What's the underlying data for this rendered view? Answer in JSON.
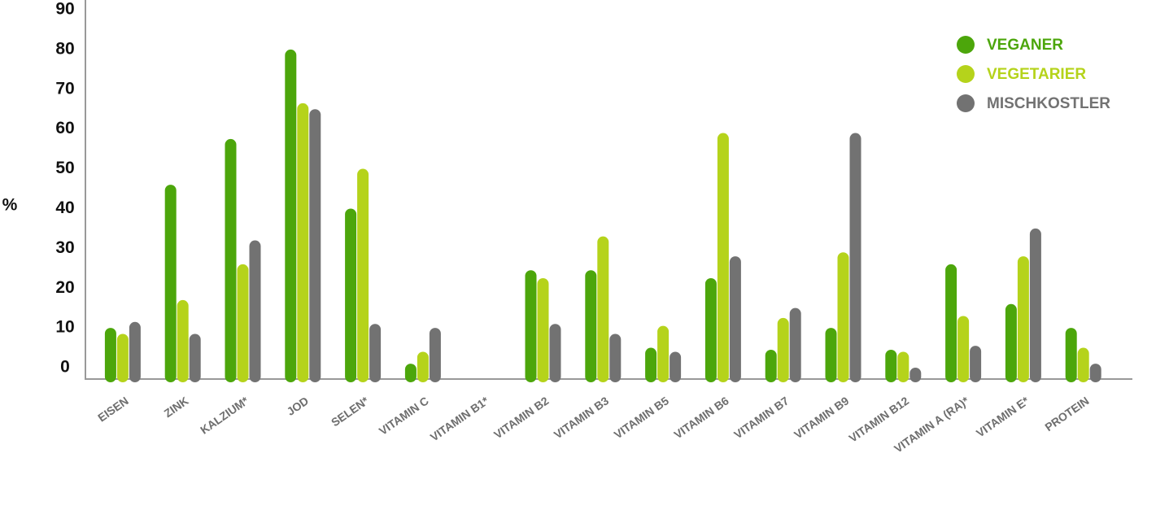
{
  "chart_data": {
    "type": "bar",
    "y_label": "%",
    "categories": [
      "EISEN",
      "ZINK",
      "KALZIUM*",
      "JOD",
      "SELEN*",
      "VITAMIN C",
      "VITAMIN B1*",
      "VITAMIN B2",
      "VITAMIN B3",
      "VITAMIN B5",
      "VITAMIN B6",
      "VITAMIN B7",
      "VITAMIN B9",
      "VITAMIN B12",
      "VITAMIN A (RA)*",
      "VITAMIN E*",
      "PROTEIN"
    ],
    "series": [
      {
        "name": "VEGANER",
        "color": "#4ca60b",
        "values": [
          10,
          46,
          57.5,
          80,
          40,
          1,
          null,
          24.5,
          24.5,
          5,
          22.5,
          4.5,
          10,
          4.5,
          26,
          16,
          10
        ]
      },
      {
        "name": "VEGETARIER",
        "color": "#b5d31b",
        "values": [
          8.5,
          17,
          26,
          66.5,
          50,
          4,
          null,
          22.5,
          33,
          10.5,
          59,
          12.5,
          29,
          4,
          13,
          28,
          5
        ]
      },
      {
        "name": "MISCHKOSTLER",
        "color": "#727272",
        "values": [
          11.5,
          8.5,
          32,
          65,
          11,
          10,
          null,
          11,
          8.5,
          4,
          28,
          15,
          59,
          0,
          5.5,
          35,
          1
        ]
      }
    ],
    "ylim": [
      0,
      90
    ],
    "yticks": [
      0,
      10,
      20,
      30,
      40,
      50,
      60,
      70,
      80,
      90
    ],
    "legend": "top-right",
    "grid": false
  }
}
